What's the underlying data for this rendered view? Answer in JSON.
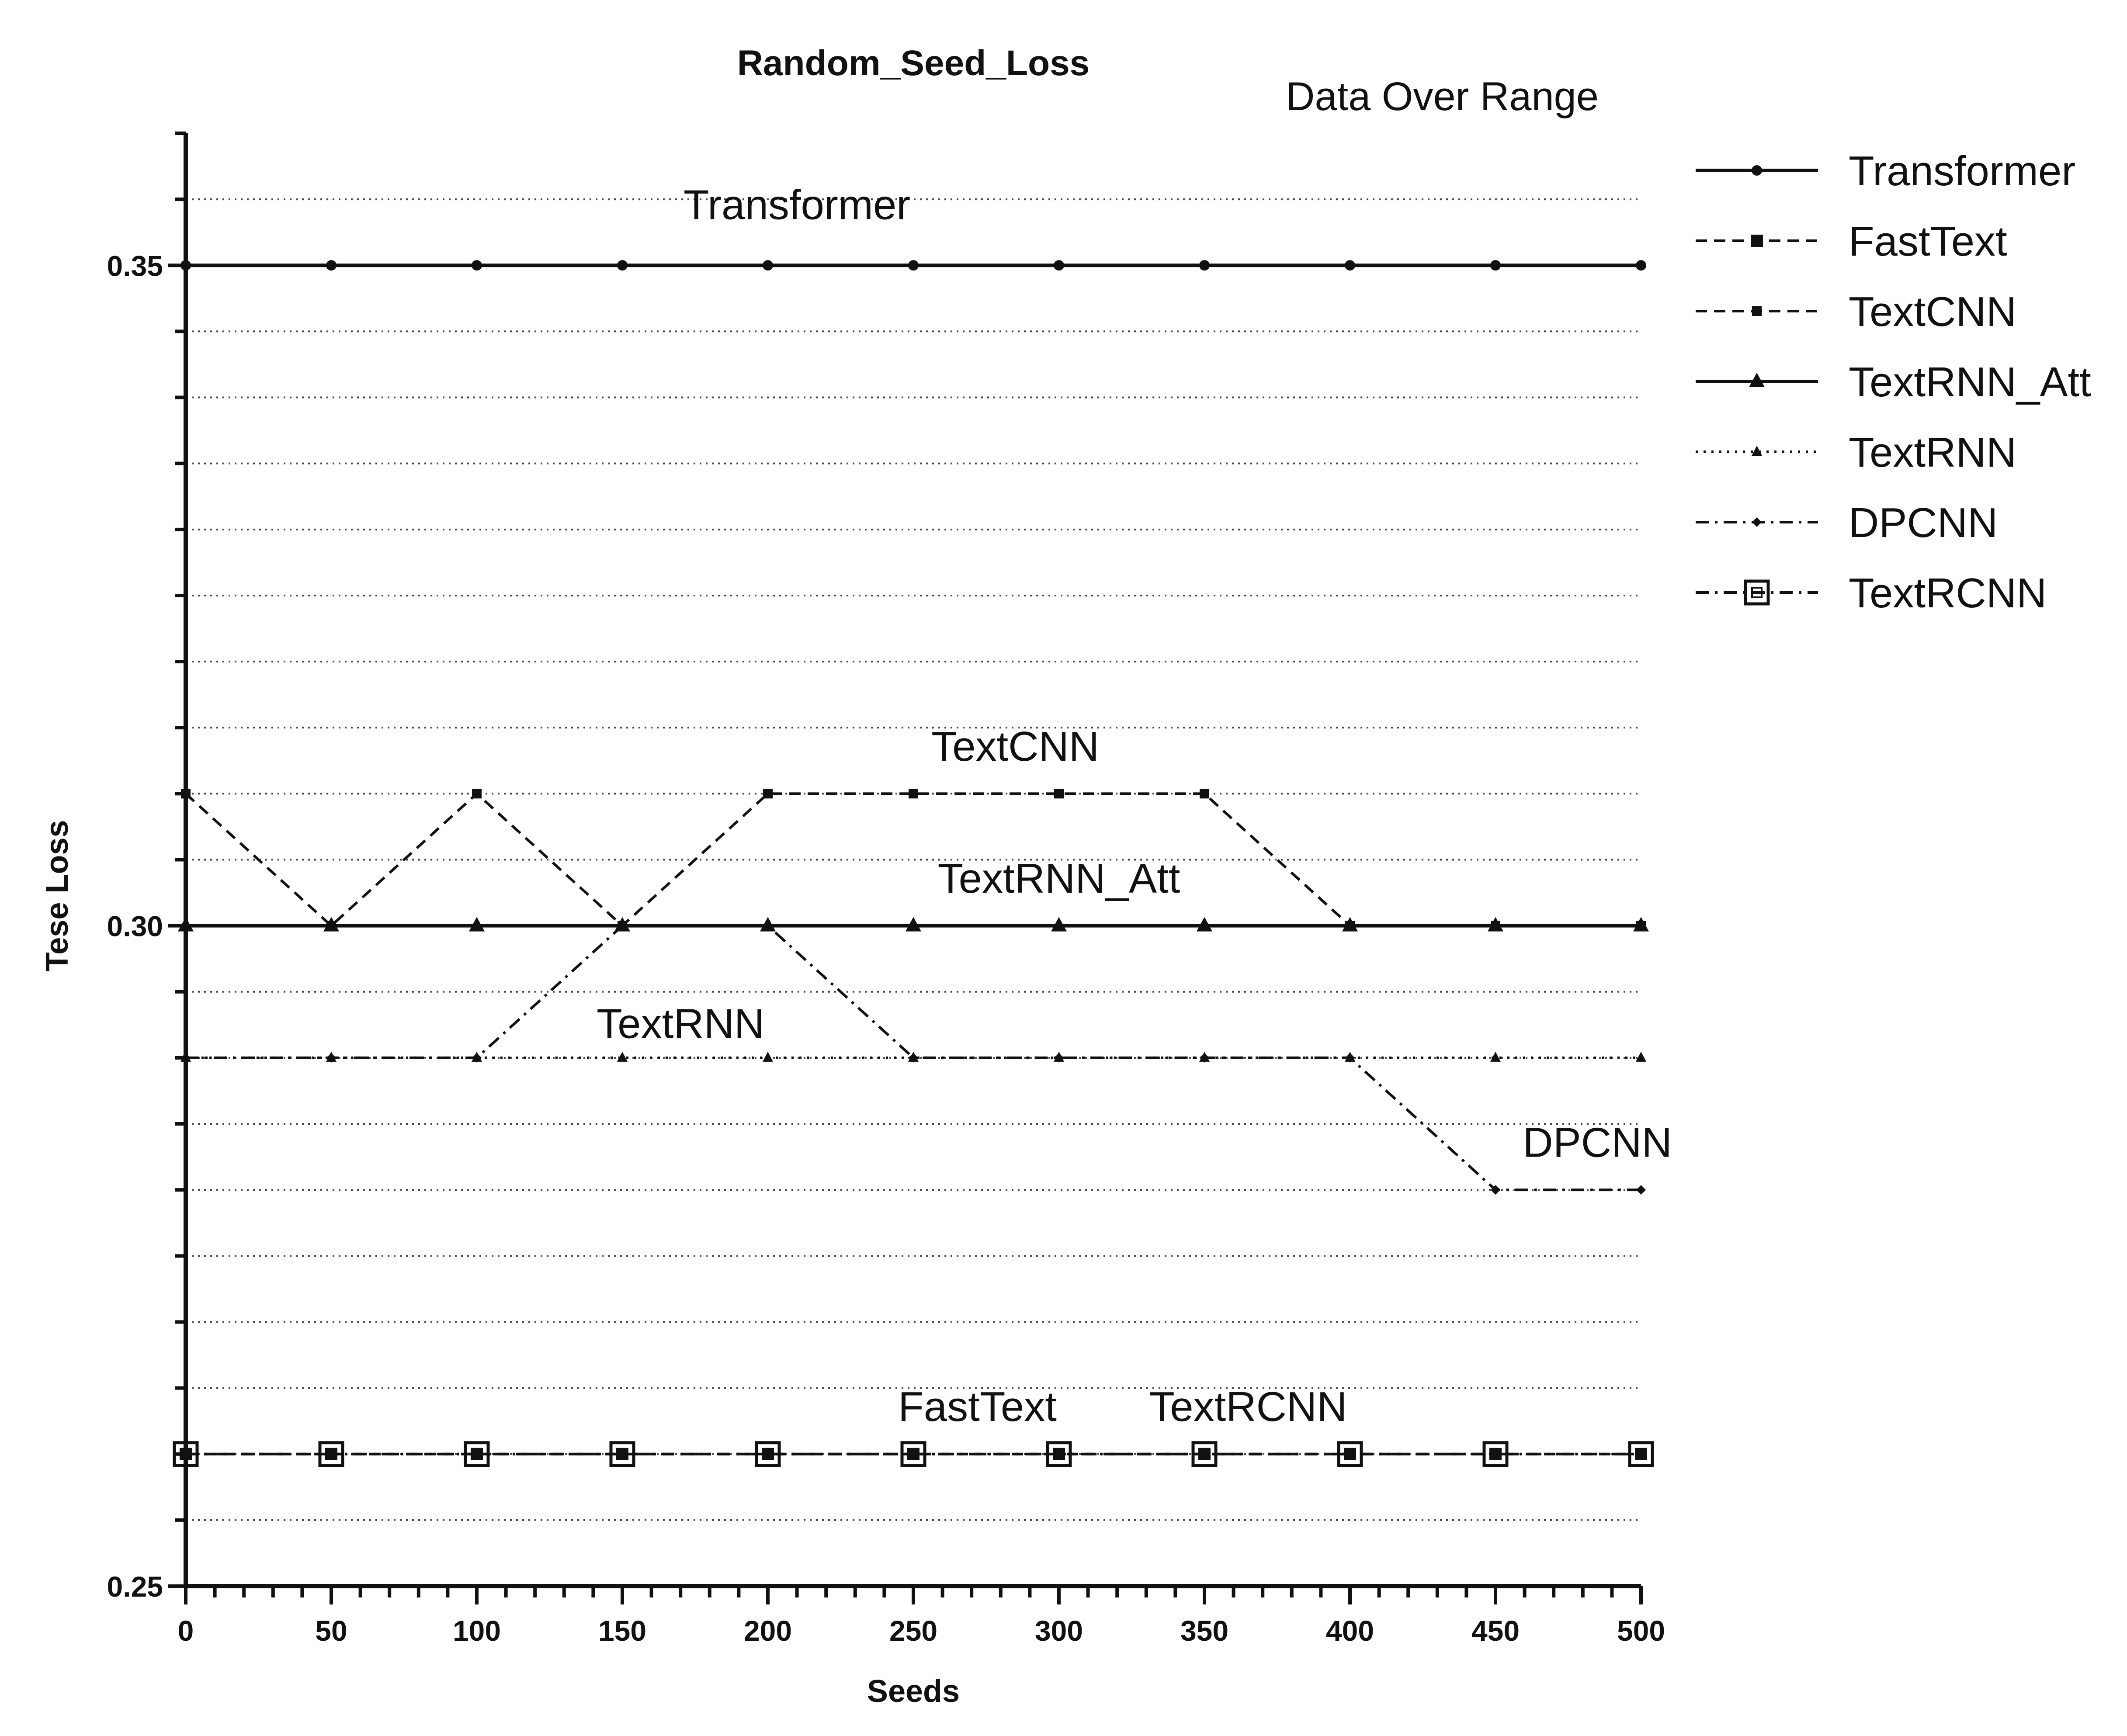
{
  "chart_data": {
    "type": "line",
    "title": "Random_Seed_Loss",
    "subtitle": "Data Over Range",
    "xlabel": "Seeds",
    "ylabel": "Tese Loss",
    "x": [
      0,
      50,
      100,
      150,
      200,
      250,
      300,
      350,
      400,
      450,
      500
    ],
    "xlim": [
      0,
      500
    ],
    "ylim": [
      0.25,
      0.36
    ],
    "x_ticks": [
      "0",
      "50",
      "100",
      "150",
      "200",
      "250",
      "300",
      "350",
      "400",
      "450",
      "500"
    ],
    "y_ticks": [
      {
        "value": 0.25,
        "label": "0.25"
      },
      {
        "value": 0.3,
        "label": "0.30"
      },
      {
        "value": 0.35,
        "label": "0.35"
      }
    ],
    "grid": "horizontal dotted, every 0.005",
    "legend_position": "right",
    "series": [
      {
        "name": "Transformer",
        "values": [
          0.35,
          0.35,
          0.35,
          0.35,
          0.35,
          0.35,
          0.35,
          0.35,
          0.35,
          0.35,
          0.35
        ],
        "line": "solid",
        "marker": "dot"
      },
      {
        "name": "FastText",
        "values": [
          0.26,
          0.26,
          0.26,
          0.26,
          0.26,
          0.26,
          0.26,
          0.26,
          0.26,
          0.26,
          0.26
        ],
        "line": "dashed",
        "marker": "square"
      },
      {
        "name": "TextCNN",
        "values": [
          0.31,
          0.3,
          0.31,
          0.3,
          0.31,
          0.31,
          0.31,
          0.31,
          0.3,
          0.3,
          0.3
        ],
        "line": "dashed",
        "marker": "small-square"
      },
      {
        "name": "TextRNN_Att",
        "values": [
          0.3,
          0.3,
          0.3,
          0.3,
          0.3,
          0.3,
          0.3,
          0.3,
          0.3,
          0.3,
          0.3
        ],
        "line": "solid",
        "marker": "triangle"
      },
      {
        "name": "TextRNN",
        "values": [
          0.29,
          0.29,
          0.29,
          0.29,
          0.29,
          0.29,
          0.29,
          0.29,
          0.29,
          0.29,
          0.29
        ],
        "line": "dotted",
        "marker": "small-triangle"
      },
      {
        "name": "DPCNN",
        "values": [
          0.29,
          0.29,
          0.29,
          0.3,
          0.3,
          0.29,
          0.29,
          0.29,
          0.29,
          0.28,
          0.28
        ],
        "line": "dashdot",
        "marker": "diamond"
      },
      {
        "name": "TextRCNN",
        "values": [
          0.26,
          0.26,
          0.26,
          0.26,
          0.26,
          0.26,
          0.26,
          0.26,
          0.26,
          0.26,
          0.26
        ],
        "line": "dashdot",
        "marker": "open-square"
      }
    ],
    "annotations": [
      {
        "text": "Transformer",
        "x": 210,
        "y": 0.3535
      },
      {
        "text": "TextCNN",
        "x": 285,
        "y": 0.3125
      },
      {
        "text": "TextRNN_Att",
        "x": 300,
        "y": 0.3025
      },
      {
        "text": "TextRNN",
        "x": 170,
        "y": 0.2915
      },
      {
        "text": "DPCNN",
        "x": 485,
        "y": 0.2825
      },
      {
        "text": "FastText",
        "x": 272,
        "y": 0.2625
      },
      {
        "text": "TextRCNN",
        "x": 365,
        "y": 0.2625
      }
    ]
  }
}
